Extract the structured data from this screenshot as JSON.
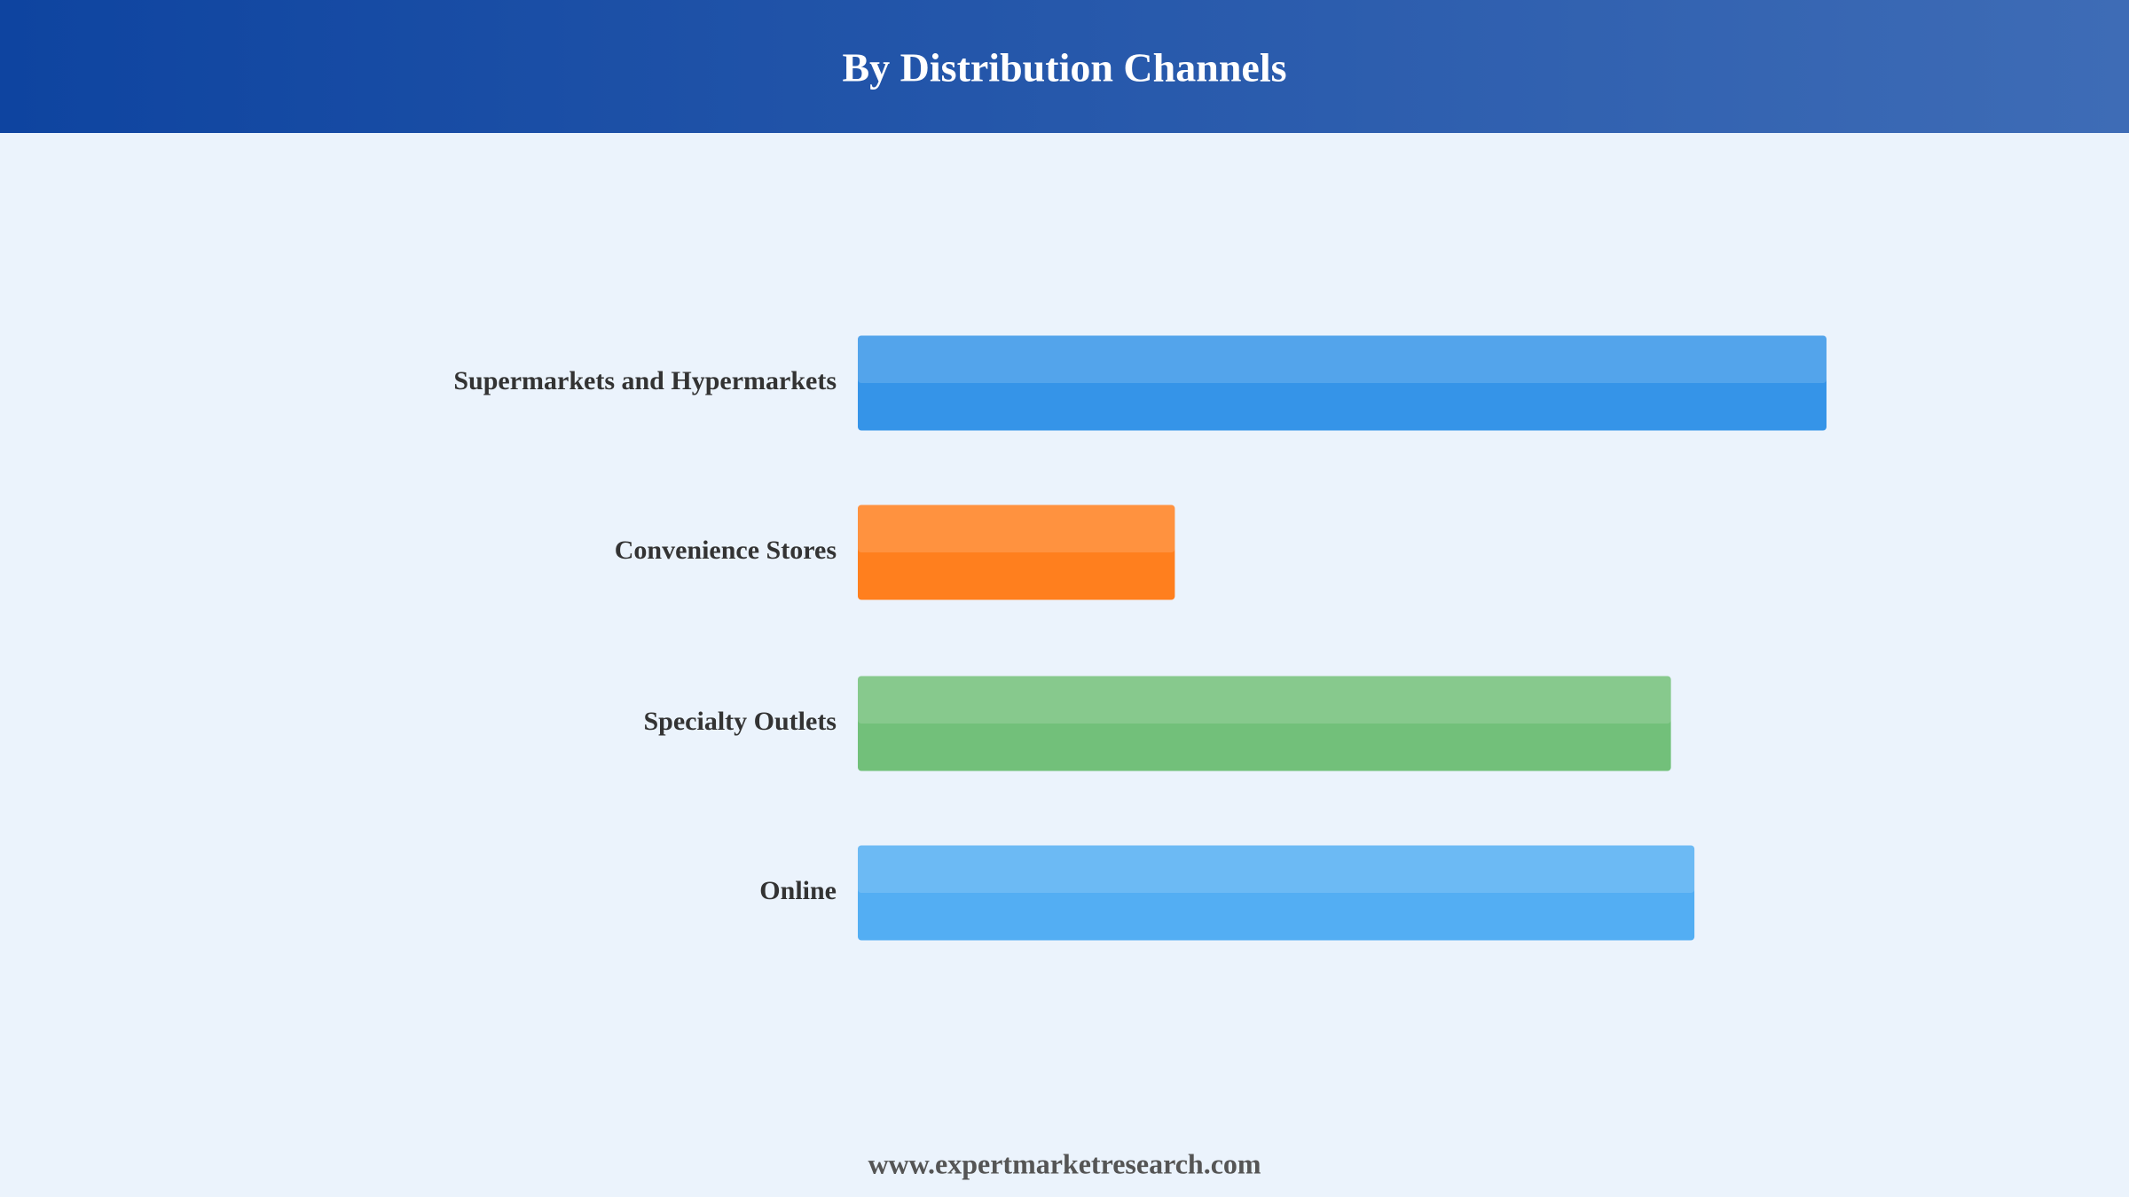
{
  "chart_data": {
    "type": "hbar",
    "title": "By Distribution Channels",
    "categories": [
      "Supermarkets and Hypermarkets",
      "Convenience Stores",
      "Specialty Outlets",
      "Online"
    ],
    "values": [
      33,
      10.8,
      27.7,
      28.5
    ],
    "colors": [
      "#3594e8",
      "#ff7f1e",
      "#72c07a",
      "#53aef3"
    ],
    "xlim": [
      0,
      33
    ],
    "source": "www.expertmarketresearch.com"
  }
}
